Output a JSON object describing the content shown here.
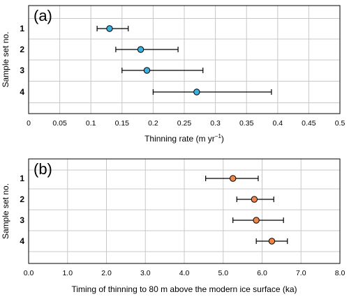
{
  "chart_data": [
    {
      "type": "scatter",
      "panel_label": "(a)",
      "xlabel": "Thinning rate (m yr",
      "xlabel_sup": "−1",
      "xlabel_close": ")",
      "ylabel": "Sample set no.",
      "xlim": [
        0,
        0.5
      ],
      "xticks": [
        "0",
        "0.05",
        "0.1",
        "0.15",
        "0.2",
        "0.25",
        "0.3",
        "0.35",
        "0.4",
        "0.45",
        "0.5"
      ],
      "categories": [
        "1",
        "2",
        "3",
        "4"
      ],
      "values": [
        0.13,
        0.18,
        0.19,
        0.27
      ],
      "error_low": [
        0.11,
        0.14,
        0.15,
        0.2
      ],
      "error_high": [
        0.16,
        0.24,
        0.28,
        0.39
      ],
      "marker_color": "#39b2e0",
      "grid": true
    },
    {
      "type": "scatter",
      "panel_label": "(b)",
      "xlabel": "Timing of thinning to 80 m above the modern ice surface (ka)",
      "ylabel": "Sample set no.",
      "xlim": [
        0,
        8
      ],
      "xticks": [
        "0.0",
        "1.0",
        "2.0",
        "3.0",
        "4.0",
        "5.0",
        "6.0",
        "7.0",
        "8.0"
      ],
      "categories": [
        "1",
        "2",
        "3",
        "4"
      ],
      "values": [
        5.25,
        5.8,
        5.85,
        6.25
      ],
      "error_low": [
        4.55,
        5.35,
        5.25,
        5.85
      ],
      "error_high": [
        5.9,
        6.3,
        6.55,
        6.65
      ],
      "marker_color": "#f0874a",
      "grid": true
    }
  ]
}
